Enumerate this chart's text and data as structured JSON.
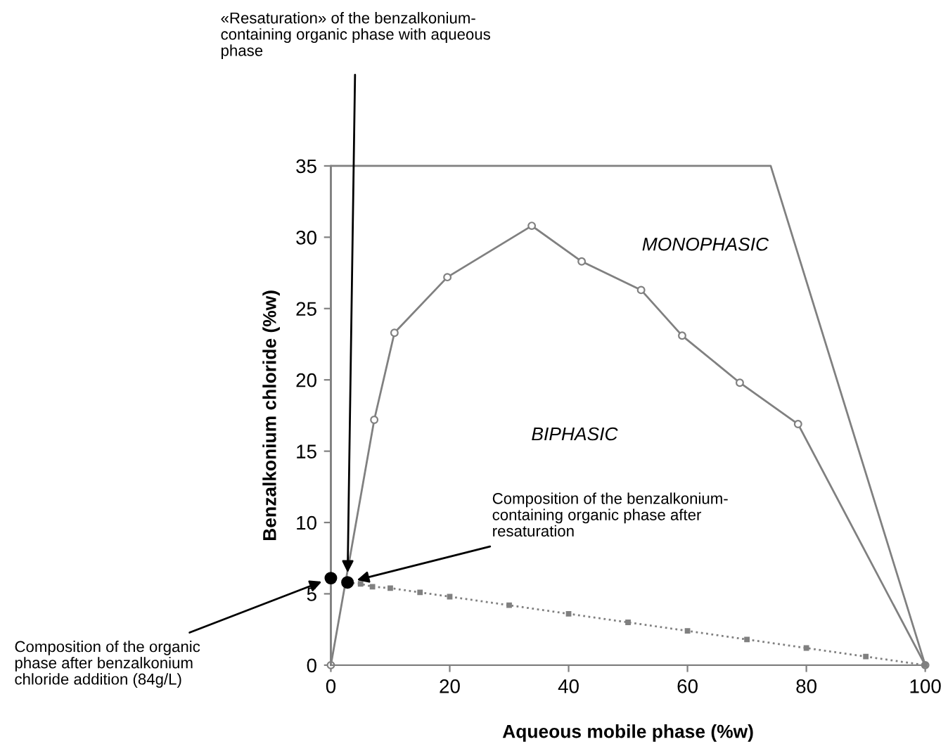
{
  "chart_data": {
    "type": "line",
    "xlabel": "Aqueous mobile phase (%w)",
    "ylabel": "Benzalkonium chloride (%w)",
    "xlim": [
      0,
      100
    ],
    "ylim": [
      0,
      35
    ],
    "xticks": [
      0,
      20,
      40,
      60,
      80,
      100
    ],
    "yticks": [
      0,
      5,
      10,
      15,
      20,
      25,
      30,
      35
    ],
    "grid": false,
    "legend": false,
    "series": [
      {
        "color": "#808080",
        "marker": "circle",
        "line_style": "solid",
        "x": [
          0,
          7.3,
          10.7,
          19.6,
          33.8,
          42.2,
          52.2,
          59.1,
          68.8,
          78.6,
          100
        ],
        "values": [
          0,
          17.2,
          23.3,
          27.2,
          30.8,
          28.3,
          26.3,
          23.1,
          19.8,
          16.9,
          0
        ]
      },
      {
        "color": "#808080",
        "marker": "none",
        "line_style": "solid",
        "x": [
          0,
          0,
          74,
          100
        ],
        "values": [
          0,
          35,
          35,
          0
        ]
      },
      {
        "color": "#808080",
        "marker": "square",
        "line_style": "dotted",
        "x": [
          2.8,
          5,
          7,
          10,
          15,
          20,
          30,
          40,
          50,
          60,
          70,
          80,
          90,
          100
        ],
        "values": [
          5.8,
          5.7,
          5.5,
          5.4,
          5.1,
          4.8,
          4.2,
          3.6,
          3.0,
          2.4,
          1.8,
          1.2,
          0.6,
          0
        ]
      },
      {
        "type": "scatter",
        "color": "#000000",
        "marker": "circle",
        "x": [
          0,
          2.8
        ],
        "values": [
          6.1,
          5.8
        ]
      }
    ],
    "annotations": [
      "«Resaturation» of the benzalkonium-\ncontaining organic phase with aqueous\nphase",
      {
        "text": "Composition of the benzalkonium-\ncontaining organic phase after\nresaturation",
        "x": 2.8,
        "y": 5.8
      },
      {
        "text": "Composition of the organic\nphase after benzalkonium\nchloride addition (84g/L)",
        "x": 0,
        "y": 6.1
      },
      "MONOPHASIC",
      "BIPHASIC"
    ]
  }
}
